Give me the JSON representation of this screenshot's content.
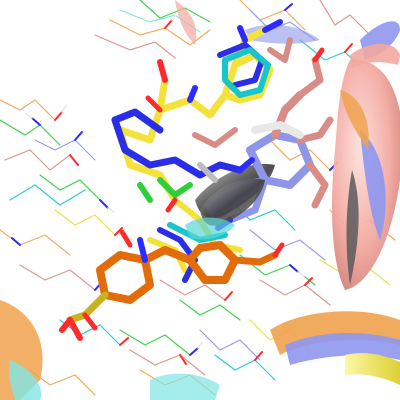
{
  "scene": {
    "subject": "protein-ligand-structure-superposition",
    "background": "#ffffff",
    "palette": {
      "ligand_yellow": "#f4e23a",
      "ligand_blue": "#2a2ee6",
      "ligand_orange": "#e36c0a",
      "ligand_salmon": "#d98c86",
      "ligand_lavender": "#8f95e8",
      "ligand_cyan": "#18c6c9",
      "ligand_green": "#2fcf3a",
      "ribbon_salmon": "#f2a8a0",
      "ribbon_orange": "#f0a24e",
      "ribbon_yellow": "#e6de3a",
      "ribbon_blue": "#8e97ee",
      "ribbon_cyan": "#7fe6e6",
      "atom_oxygen": "#ff2a2a",
      "atom_nitrogen": "#2b2bff",
      "atom_hydrogen": "#f0f0f0",
      "atom_sulfur": "#c9b21f",
      "carbon_gray": "#9a9a9a"
    }
  }
}
